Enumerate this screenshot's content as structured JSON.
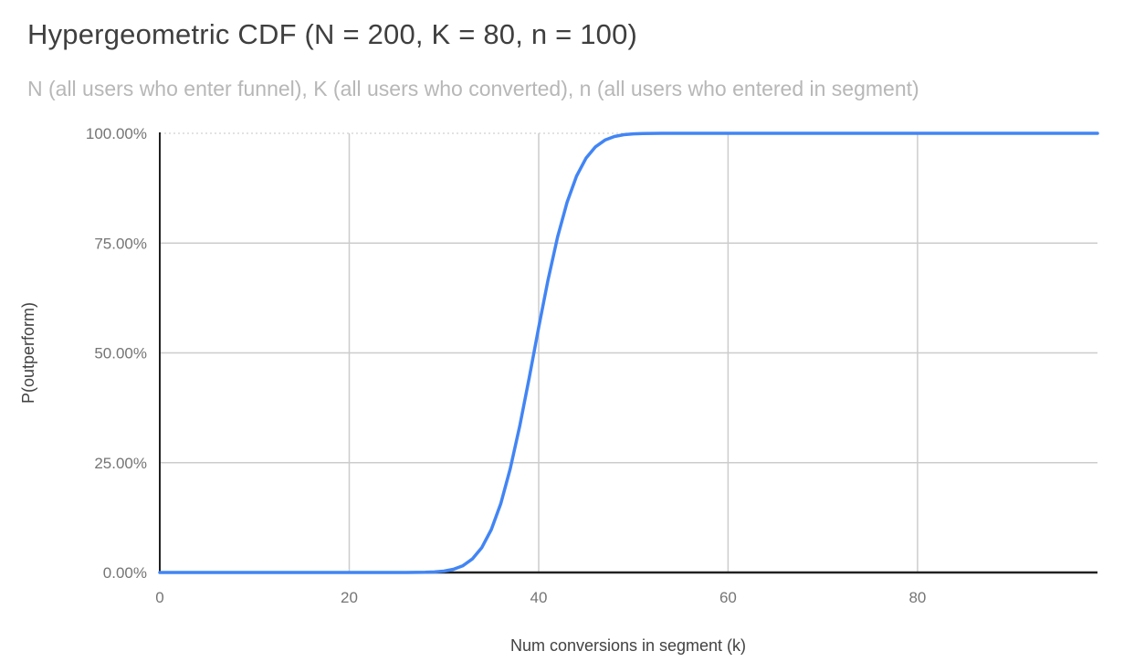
{
  "chart_data": {
    "type": "line",
    "title": "Hypergeometric CDF (N = 200, K = 80, n = 100)",
    "subtitle": "N (all users who enter funnel), K (all users who converted), n (all users who entered in segment)",
    "xlabel": "Num conversions in segment (k)",
    "ylabel": "P(outperform)",
    "parameters": {
      "N": 200,
      "K": 80,
      "n": 100
    },
    "xlim": [
      0,
      99
    ],
    "ylim": [
      0,
      1
    ],
    "xticks": [
      0,
      20,
      40,
      60,
      80
    ],
    "ytick_labels": [
      "0.00%",
      "25.00%",
      "50.00%",
      "75.00%",
      "100.00%"
    ],
    "grid": true,
    "legend_position": "none",
    "series": [
      {
        "name": "P(outperform)",
        "color": "#4285f4",
        "x_start": 0,
        "x_step": 1,
        "y": [
          0,
          0,
          0,
          0,
          0,
          0,
          0,
          0,
          0,
          0,
          0,
          0,
          0,
          0,
          0,
          0,
          0,
          0,
          0,
          0,
          0,
          0,
          0,
          0,
          0,
          2e-05,
          5e-05,
          0.00016,
          0.00046,
          0.00125,
          0.0031,
          0.0072,
          0.0154,
          0.0307,
          0.0567,
          0.0977,
          0.157,
          0.236,
          0.333,
          0.443,
          0.557,
          0.667,
          0.764,
          0.843,
          0.9023,
          0.9433,
          0.9693,
          0.9846,
          0.9928,
          0.9969,
          0.9988,
          0.9995,
          0.9998,
          0.9999,
          1,
          1,
          1,
          1,
          1,
          1,
          1,
          1,
          1,
          1,
          1,
          1,
          1,
          1,
          1,
          1,
          1,
          1,
          1,
          1,
          1,
          1,
          1,
          1,
          1,
          1,
          1,
          1,
          1,
          1,
          1,
          1,
          1,
          1,
          1,
          1,
          1,
          1,
          1,
          1,
          1,
          1,
          1,
          1,
          1,
          1
        ]
      }
    ]
  },
  "colors": {
    "line": "#4285f4",
    "gridline": "#cccccc",
    "dotted_gridline": "#d9d9d9",
    "axis": "#212121",
    "tick_label": "#757575",
    "axis_title": "#424242",
    "title": "#3f3f3f",
    "subtitle": "#b7b7b7",
    "background": "#ffffff"
  }
}
